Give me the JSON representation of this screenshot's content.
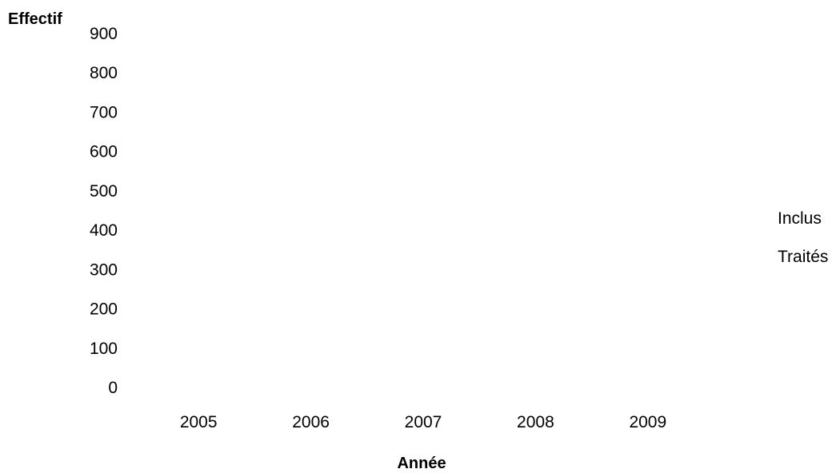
{
  "chart_data": {
    "type": "bar",
    "title": "",
    "xlabel": "Année",
    "ylabel": "Effectif",
    "categories": [
      "2005",
      "2006",
      "2007",
      "2008",
      "2009"
    ],
    "y_ticks": [
      "0",
      "100",
      "200",
      "300",
      "400",
      "500",
      "600",
      "700",
      "800",
      "900"
    ],
    "ylim": [
      0,
      900
    ],
    "grid": false,
    "legend_position": "right",
    "series": [
      {
        "name": "Inclus",
        "values": [
          0,
          0,
          0,
          0,
          0
        ]
      },
      {
        "name": "Traités",
        "values": [
          0,
          0,
          0,
          0,
          0
        ]
      }
    ]
  }
}
